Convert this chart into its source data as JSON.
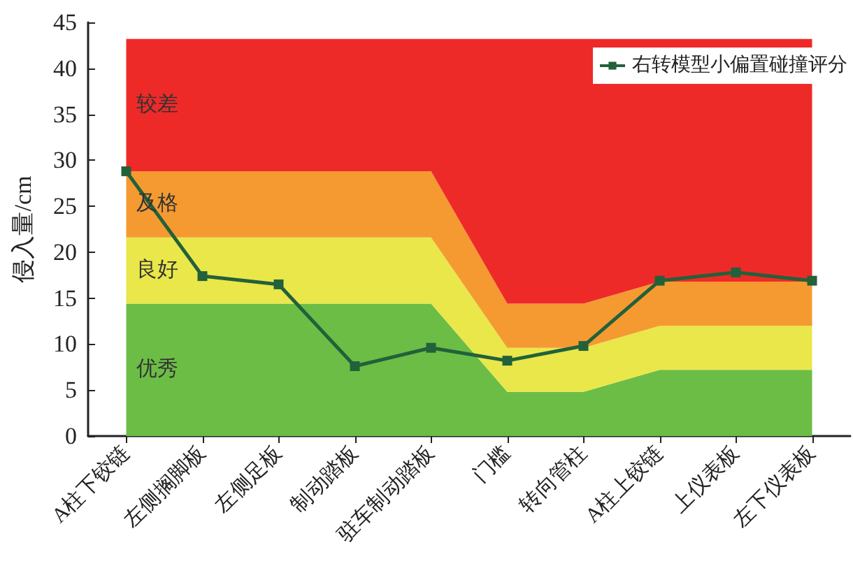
{
  "chart_data": {
    "type": "area",
    "stacked": true,
    "ylabel": "侵入量/cm",
    "categories": [
      "A柱下铰链",
      "左侧搁脚板",
      "左侧足板",
      "制动踏板",
      "驻车制动踏板",
      "门槛",
      "转向管柱",
      "A柱上铰链",
      "上仪表板",
      "左下仪表板"
    ],
    "series": [
      {
        "name": "优秀",
        "color": "#6cbd45",
        "values": [
          14.4,
          14.4,
          14.4,
          14.4,
          14.4,
          4.8,
          4.8,
          7.2,
          7.2,
          7.2
        ]
      },
      {
        "name": "良好",
        "color": "#e9e74a",
        "values": [
          7.2,
          7.2,
          7.2,
          7.2,
          7.2,
          4.8,
          4.8,
          4.8,
          4.8,
          4.8
        ]
      },
      {
        "name": "及格",
        "color": "#f59a31",
        "values": [
          7.2,
          7.2,
          7.2,
          7.2,
          7.2,
          4.8,
          4.8,
          4.8,
          4.8,
          4.8
        ]
      },
      {
        "name": "较差",
        "color": "#ee2a28",
        "values": [
          14.4,
          14.4,
          14.4,
          14.4,
          14.4,
          28.8,
          28.8,
          26.4,
          26.4,
          26.4
        ]
      },
      {
        "name": "右转模型小偏置碰撞评分",
        "type": "line",
        "color": "#22613a",
        "marker": "square",
        "values": [
          28.8,
          17.4,
          16.5,
          7.6,
          9.6,
          8.2,
          9.8,
          16.9,
          17.8,
          16.9
        ]
      }
    ],
    "ylim": [
      0,
      45
    ],
    "yticks": [
      0,
      5,
      10,
      15,
      20,
      25,
      30,
      35,
      40,
      45
    ],
    "grid": false,
    "legend": "top right"
  }
}
